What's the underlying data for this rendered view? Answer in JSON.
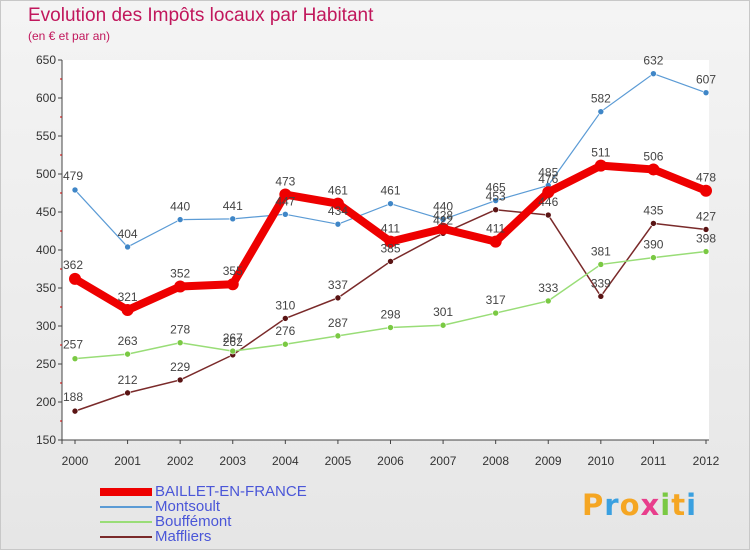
{
  "chart_data": {
    "type": "line",
    "title": "Evolution des Impôts locaux par Habitant",
    "subtitle": "(en € et par an)",
    "xlabel": "",
    "ylabel": "",
    "x": [
      "2000",
      "2001",
      "2002",
      "2003",
      "2004",
      "2005",
      "2006",
      "2007",
      "2008",
      "2009",
      "2010",
      "2011",
      "2012"
    ],
    "ylim": [
      150,
      650
    ],
    "yticks": [
      150,
      200,
      250,
      300,
      350,
      400,
      450,
      500,
      550,
      600,
      650
    ],
    "grid": false,
    "legend_position": "bottom-left",
    "series": [
      {
        "name": "BAILLET-EN-FRANCE",
        "color": "#ee0000",
        "values": [
          362,
          321,
          352,
          355,
          473,
          461,
          411,
          428,
          411,
          476,
          511,
          506,
          478
        ]
      },
      {
        "name": "Montsoult",
        "color": "#5b9bd5",
        "values": [
          479,
          404,
          440,
          441,
          447,
          434,
          461,
          440,
          465,
          485,
          582,
          632,
          607
        ]
      },
      {
        "name": "Bouffémont",
        "color": "#99dd77",
        "values": [
          257,
          263,
          278,
          267,
          276,
          287,
          298,
          301,
          317,
          333,
          381,
          390,
          398
        ]
      },
      {
        "name": "Maffliers",
        "color": "#7a2a2a",
        "values": [
          188,
          212,
          229,
          262,
          310,
          337,
          385,
          422,
          453,
          446,
          339,
          435,
          427
        ]
      }
    ]
  },
  "logo": {
    "letters": [
      "P",
      "r",
      "o",
      "x",
      "i",
      "t",
      "i"
    ],
    "colors": [
      "#f5a623",
      "#3aa0e0",
      "#f5a623",
      "#e83e8c",
      "#7ac943",
      "#f5a623",
      "#3aa0e0"
    ]
  }
}
